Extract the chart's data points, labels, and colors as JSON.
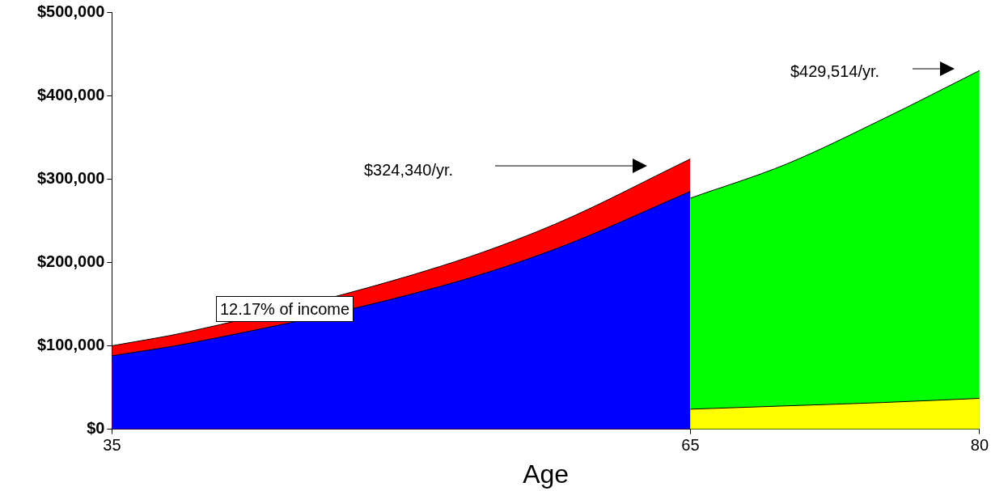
{
  "chart_data": {
    "type": "area",
    "xlabel": "Age",
    "xlim": [
      35,
      80
    ],
    "xticks": [
      35,
      65,
      80
    ],
    "ylim": [
      0,
      500000
    ],
    "yticks": [
      {
        "value": 0,
        "label": "$0"
      },
      {
        "value": 100000,
        "label": "$100,000"
      },
      {
        "value": 200000,
        "label": "$200,000"
      },
      {
        "value": 300000,
        "label": "$300,000"
      },
      {
        "value": 400000,
        "label": "$400,000"
      },
      {
        "value": 500000,
        "label": "$500,000"
      }
    ],
    "grid": false,
    "legend": false,
    "series": [
      {
        "color": "#ff0000",
        "x": [
          35,
          39,
          52,
          58,
          65
        ],
        "values": [
          100000,
          117000,
          195000,
          246000,
          324000
        ]
      },
      {
        "color": "#0000ff",
        "x": [
          35,
          39,
          52,
          58,
          65
        ],
        "values": [
          88000,
          103000,
          171000,
          216000,
          285000
        ]
      },
      {
        "color": "#00ff00",
        "x": [
          65,
          70,
          75,
          80
        ],
        "values": [
          277000,
          318000,
          372000,
          430000
        ]
      },
      {
        "color": "#ffff00",
        "x": [
          65,
          70,
          75,
          80
        ],
        "values": [
          24000,
          28000,
          32000,
          37000
        ]
      }
    ],
    "annotations": [
      "$324,340/yr.",
      "$429,514/yr.",
      "12.17% of income"
    ]
  }
}
